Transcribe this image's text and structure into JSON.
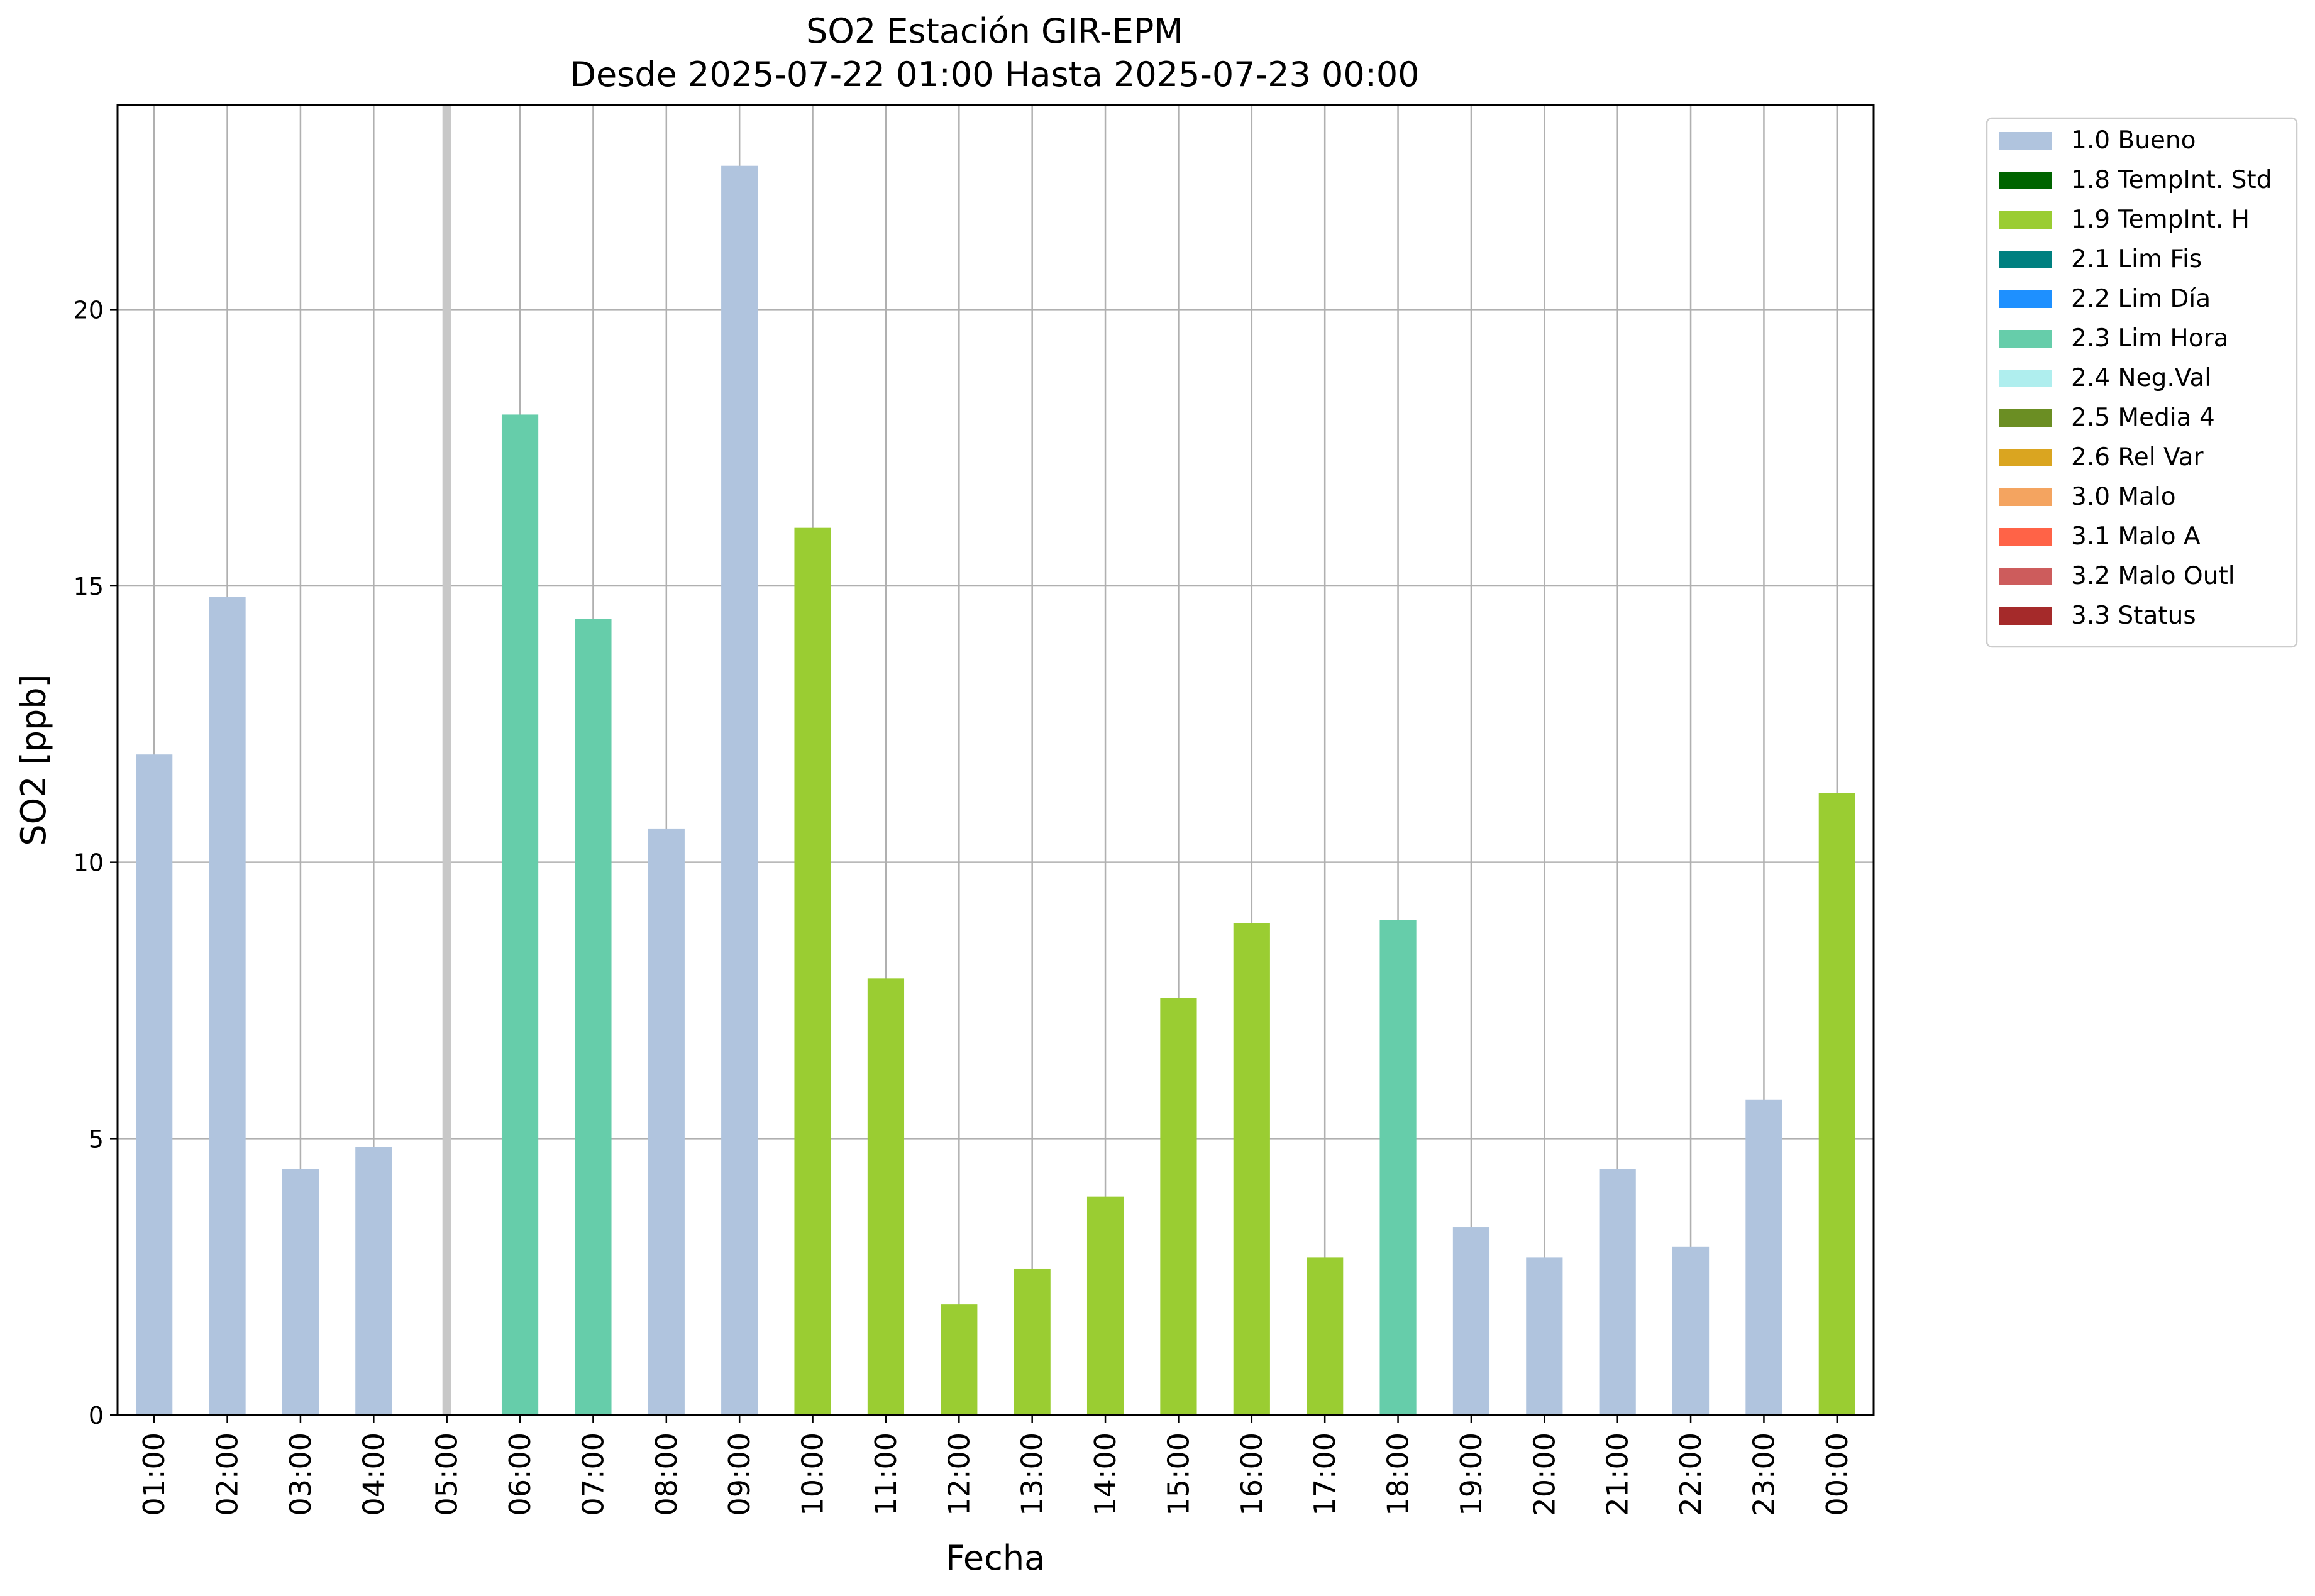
{
  "chart_data": {
    "type": "bar",
    "title": "SO2 Estación GIR-EPM",
    "subtitle": "Desde 2025-07-22 01:00 Hasta 2025-07-23 00:00",
    "xlabel": "Fecha",
    "ylabel": "SO2 [ppb]",
    "ylim": [
      0,
      23.7
    ],
    "yticks": [
      0,
      5,
      10,
      15,
      20
    ],
    "grid": true,
    "legend_position": "outside-top-right",
    "categories": [
      "01:00",
      "02:00",
      "03:00",
      "04:00",
      "05:00",
      "06:00",
      "07:00",
      "08:00",
      "09:00",
      "10:00",
      "11:00",
      "12:00",
      "13:00",
      "14:00",
      "15:00",
      "16:00",
      "17:00",
      "18:00",
      "19:00",
      "20:00",
      "21:00",
      "22:00",
      "23:00",
      "00:00"
    ],
    "values": [
      11.95,
      14.8,
      4.45,
      4.85,
      null,
      18.1,
      14.4,
      10.6,
      22.6,
      16.05,
      7.9,
      2.0,
      2.65,
      3.95,
      7.55,
      8.9,
      2.85,
      8.95,
      3.4,
      2.85,
      4.45,
      3.05,
      5.7,
      11.25
    ],
    "flags": [
      "1.0 Bueno",
      "1.0 Bueno",
      "1.0 Bueno",
      "1.0 Bueno",
      null,
      "2.3 Lim Hora",
      "2.3 Lim Hora",
      "1.0 Bueno",
      "1.0 Bueno",
      "1.9 TempInt. H",
      "1.9 TempInt. H",
      "1.9 TempInt. H",
      "1.9 TempInt. H",
      "1.9 TempInt. H",
      "1.9 TempInt. H",
      "1.9 TempInt. H",
      "1.9 TempInt. H",
      "2.3 Lim Hora",
      "1.0 Bueno",
      "1.0 Bueno",
      "1.0 Bueno",
      "1.0 Bueno",
      "1.0 Bueno",
      "1.9 TempInt. H"
    ],
    "legend": [
      {
        "name": "1.0 Bueno",
        "color": "#b0c4de"
      },
      {
        "name": "1.8 TempInt. Std",
        "color": "#006400"
      },
      {
        "name": "1.9 TempInt. H",
        "color": "#9acd32"
      },
      {
        "name": "2.1 Lim Fis",
        "color": "#008080"
      },
      {
        "name": "2.2 Lim Día",
        "color": "#1e90ff"
      },
      {
        "name": "2.3 Lim Hora",
        "color": "#66cdaa"
      },
      {
        "name": "2.4 Neg.Val",
        "color": "#afeeee"
      },
      {
        "name": "2.5 Media 4",
        "color": "#6b8e23"
      },
      {
        "name": "2.6 Rel Var",
        "color": "#daa520"
      },
      {
        "name": "3.0 Malo",
        "color": "#f4a460"
      },
      {
        "name": "3.1 Malo A",
        "color": "#ff6347"
      },
      {
        "name": "3.2 Malo Outl",
        "color": "#cd5c5c"
      },
      {
        "name": "3.3 Status",
        "color": "#a52a2a"
      }
    ],
    "missing_marker_color": "#c8c8c8"
  }
}
